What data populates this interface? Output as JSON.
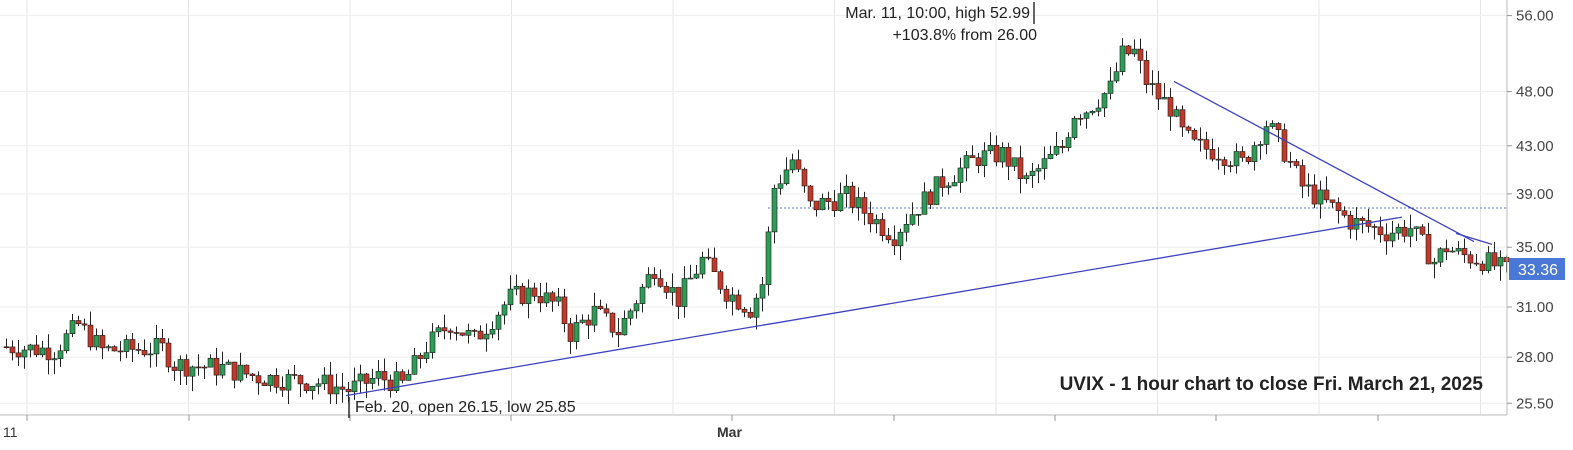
{
  "chart_data": {
    "type": "candlestick",
    "title": "UVIX - 1 hour chart to close Fri. March 21, 2025",
    "scale": "log",
    "ylim": [
      24.9,
      57.8
    ],
    "y_ticks": [
      "56.00",
      "48.00",
      "43.00",
      "39.00",
      "35.00",
      "31.00",
      "28.00",
      "25.50"
    ],
    "x_ticks": [
      "11",
      "Mar"
    ],
    "last_price": "33.36",
    "reference_level": 37.9,
    "annotations": {
      "high_line1": "Mar. 11, 10:00, high 52.99",
      "high_line2": "+103.8% from 26.00",
      "low": "Feb. 20, open 26.15, low 25.85"
    },
    "trendlines": [
      {
        "name": "support",
        "from": {
          "bar": 57,
          "price": 25.9
        },
        "to": {
          "bar": 233,
          "price": 37.2
        }
      },
      {
        "name": "resistance",
        "from": {
          "bar": 195,
          "price": 49.0
        },
        "to": {
          "bar": 245,
          "price": 35.4
        }
      },
      {
        "name": "short-resistance",
        "from": {
          "bar": 242,
          "price": 36.0
        },
        "to": {
          "bar": 248,
          "price": 35.2
        }
      }
    ],
    "anchors": [
      [
        0,
        28.6
      ],
      [
        8,
        28.4
      ],
      [
        12,
        29.9
      ],
      [
        16,
        28.4
      ],
      [
        26,
        28.5
      ],
      [
        28,
        27.6
      ],
      [
        36,
        27.4
      ],
      [
        42,
        26.9
      ],
      [
        52,
        26.6
      ],
      [
        57,
        26.2
      ],
      [
        62,
        26.9
      ],
      [
        66,
        26.5
      ],
      [
        70,
        28.6
      ],
      [
        74,
        30.0
      ],
      [
        78,
        29.0
      ],
      [
        84,
        31.6
      ],
      [
        88,
        32.0
      ],
      [
        92,
        31.0
      ],
      [
        94,
        29.4
      ],
      [
        98,
        30.7
      ],
      [
        102,
        29.5
      ],
      [
        108,
        33.6
      ],
      [
        112,
        31.5
      ],
      [
        116,
        34.1
      ],
      [
        120,
        32.0
      ],
      [
        124,
        30.9
      ],
      [
        126,
        32.5
      ],
      [
        128,
        39.5
      ],
      [
        131,
        41.8
      ],
      [
        134,
        38.0
      ],
      [
        140,
        38.8
      ],
      [
        146,
        36.5
      ],
      [
        148,
        35.9
      ],
      [
        150,
        37.1
      ],
      [
        156,
        40.0
      ],
      [
        162,
        42.0
      ],
      [
        166,
        42.3
      ],
      [
        170,
        40.0
      ],
      [
        176,
        42.9
      ],
      [
        178,
        46.0
      ],
      [
        180,
        46.3
      ],
      [
        184,
        48.3
      ],
      [
        186,
        51.7
      ],
      [
        188,
        52.0
      ],
      [
        190,
        49.0
      ],
      [
        192,
        47.5
      ],
      [
        194,
        46.5
      ],
      [
        196,
        44.1
      ],
      [
        198,
        43.0
      ],
      [
        202,
        42.5
      ],
      [
        206,
        41.5
      ],
      [
        210,
        45.0
      ],
      [
        212,
        43.5
      ],
      [
        216,
        39.6
      ],
      [
        224,
        36.9
      ],
      [
        230,
        36.1
      ],
      [
        234,
        36.4
      ],
      [
        238,
        34.0
      ],
      [
        240,
        35.0
      ],
      [
        242,
        34.5
      ],
      [
        246,
        34.1
      ],
      [
        250,
        33.36
      ]
    ]
  }
}
